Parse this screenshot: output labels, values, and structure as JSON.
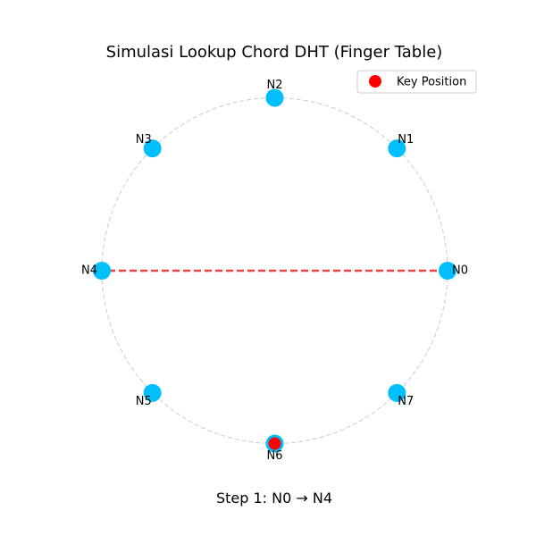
{
  "chart_data": {
    "type": "scatter",
    "title": "Simulasi Lookup Chord DHT (Finger Table)",
    "ring": {
      "node_count": 8,
      "ring_color": "#cccccc"
    },
    "nodes": [
      {
        "id": "N0",
        "index": 0
      },
      {
        "id": "N1",
        "index": 1
      },
      {
        "id": "N2",
        "index": 2
      },
      {
        "id": "N3",
        "index": 3
      },
      {
        "id": "N4",
        "index": 4
      },
      {
        "id": "N5",
        "index": 5
      },
      {
        "id": "N6",
        "index": 6
      },
      {
        "id": "N7",
        "index": 7
      }
    ],
    "node_color": "#00bfff",
    "key": {
      "label": "Key Position",
      "node": "N6",
      "color": "#ff0000"
    },
    "lookup_path": [
      {
        "from": "N0",
        "to": "N4",
        "color": "#e8423f"
      }
    ],
    "step_text": "Step 1: N0 → N4",
    "legend": {
      "placement": "top-right",
      "entries": [
        "Key Position"
      ]
    }
  }
}
